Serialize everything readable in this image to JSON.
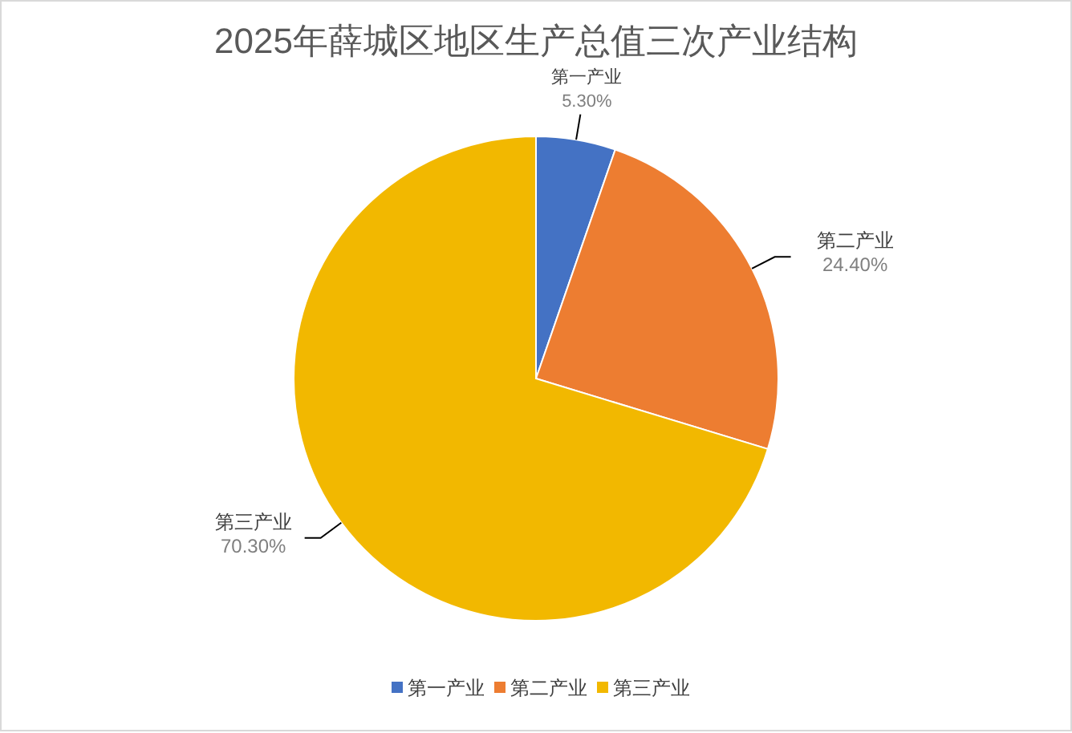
{
  "chart_data": {
    "type": "pie",
    "title": "2025年薛城区地区生产总值三次产业结构",
    "categories": [
      "第一产业",
      "第二产业",
      "第三产业"
    ],
    "values": [
      5.3,
      24.4,
      70.3
    ],
    "value_labels": [
      "5.30%",
      "24.40%",
      "70.30%"
    ],
    "colors": [
      "#4472c4",
      "#ed7d31",
      "#f2b800"
    ],
    "legend": "bottom"
  }
}
